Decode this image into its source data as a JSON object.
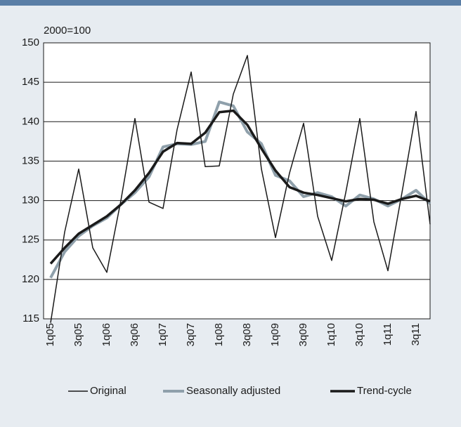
{
  "chart_data": {
    "type": "line",
    "y_axis_label": "2000=100",
    "categories": [
      "1q05",
      null,
      "3q05",
      null,
      "1q06",
      null,
      "3q06",
      null,
      "1q07",
      null,
      "3q07",
      null,
      "1q08",
      null,
      "3q08",
      null,
      "1q09",
      null,
      "3q09",
      null,
      "1q10",
      null,
      "3q10",
      null,
      "1q11",
      null,
      "3q11",
      null
    ],
    "series": [
      {
        "name": "Original",
        "color": "#1a1a1a",
        "values": [
          114.5,
          126,
          134,
          124,
          120.9,
          130,
          140.4,
          129.8,
          129,
          139,
          146.3,
          134.3,
          134.4,
          143.5,
          148.4,
          134,
          125.3,
          133.5,
          139.8,
          128,
          122.4,
          131,
          140.4,
          127.3,
          121.1,
          131,
          141.3,
          127
        ]
      },
      {
        "name": "Seasonally adjusted",
        "color": "#8fa0ab",
        "values": [
          120.2,
          123.5,
          125.5,
          126.8,
          127.8,
          129.5,
          131,
          133,
          136.8,
          137.2,
          137.1,
          137.5,
          142.5,
          142,
          138.7,
          137.2,
          133.2,
          132.5,
          130.5,
          131,
          130.5,
          129.3,
          130.7,
          130.2,
          129.3,
          130.2,
          131.3,
          129.6
        ]
      },
      {
        "name": "Trend-cycle",
        "color": "#1a1a1a",
        "values": [
          122,
          124,
          125.8,
          126.9,
          128,
          129.5,
          131.3,
          133.5,
          136.2,
          137.3,
          137.2,
          138.6,
          141.2,
          141.4,
          139.6,
          136.6,
          133.8,
          131.7,
          131,
          130.7,
          130.3,
          129.9,
          130.2,
          130.1,
          129.6,
          130.2,
          130.6,
          129.9
        ]
      }
    ],
    "ylim": [
      115,
      150
    ],
    "yticks": [
      115,
      120,
      125,
      130,
      135,
      140,
      145,
      150
    ],
    "grid": true,
    "legend": "bottom"
  }
}
